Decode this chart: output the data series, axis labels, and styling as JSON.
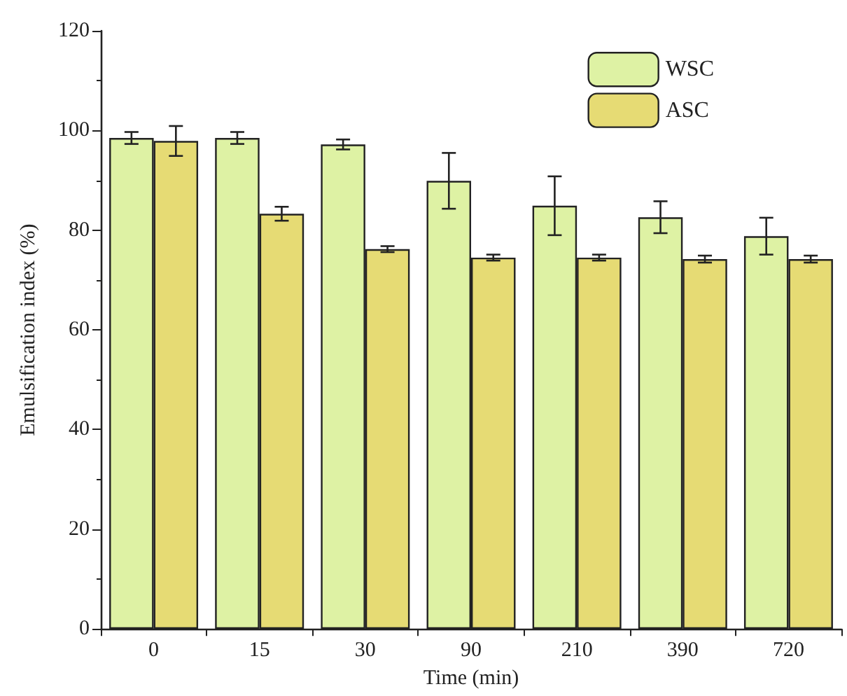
{
  "chart_data": {
    "type": "bar",
    "xlabel": "Time (min)",
    "ylabel": "Emulsification index (%)",
    "categories": [
      "0",
      "15",
      "30",
      "90",
      "210",
      "390",
      "720"
    ],
    "series": [
      {
        "name": "WSC",
        "color": "#def2a4",
        "values": [
          98.5,
          98.5,
          97.2,
          89.9,
          84.9,
          82.6,
          78.8
        ],
        "errors": [
          1.2,
          1.2,
          1.0,
          5.6,
          5.9,
          3.2,
          3.7
        ]
      },
      {
        "name": "ASC",
        "color": "#e6db74",
        "values": [
          97.9,
          83.3,
          76.2,
          74.5,
          74.5,
          74.2,
          74.2
        ],
        "errors": [
          3.0,
          1.4,
          0.6,
          0.6,
          0.6,
          0.7,
          0.7
        ]
      }
    ],
    "ylim": [
      0,
      120
    ],
    "yticks": [
      0,
      20,
      40,
      60,
      80,
      100,
      120
    ],
    "grid": false,
    "legend": "top right"
  }
}
